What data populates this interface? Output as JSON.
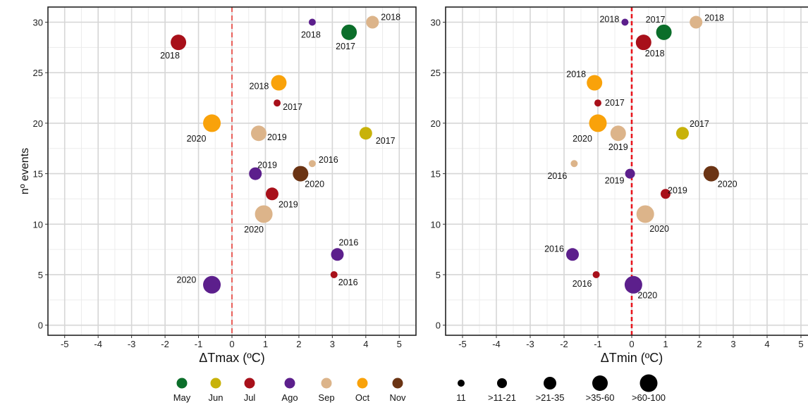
{
  "chart_data": [
    {
      "type": "scatter",
      "title": "",
      "xlabel": "ΔTmax (ºC)",
      "ylabel": "nº events",
      "xlim": [
        -5.5,
        5.5
      ],
      "ylim": [
        -1,
        31.5
      ],
      "x_ticks": [
        -5,
        -4,
        -3,
        -2,
        -1,
        0,
        1,
        2,
        3,
        4,
        5
      ],
      "y_ticks": [
        0,
        5,
        10,
        15,
        20,
        25,
        30
      ],
      "grid": true,
      "reference_line": {
        "x": 0,
        "color": "#e8322c",
        "style": "dashed"
      },
      "points": [
        {
          "x": -1.6,
          "y": 28,
          "month": "Jul",
          "size_class": ">35-60",
          "label": "2018"
        },
        {
          "x": 2.4,
          "y": 30,
          "month": "Ago",
          "size_class": "11",
          "label": "2018"
        },
        {
          "x": 3.5,
          "y": 29,
          "month": "May",
          "size_class": ">35-60",
          "label": "2017"
        },
        {
          "x": 4.2,
          "y": 30,
          "month": "Sep",
          "size_class": ">21-35",
          "label": "2018"
        },
        {
          "x": 1.4,
          "y": 24,
          "month": "Oct",
          "size_class": ">35-60",
          "label": "2018"
        },
        {
          "x": 1.35,
          "y": 22,
          "month": "Jul",
          "size_class": "11",
          "label": "2017"
        },
        {
          "x": -0.6,
          "y": 20,
          "month": "Oct",
          "size_class": ">60-100",
          "label": "2020"
        },
        {
          "x": 0.8,
          "y": 19,
          "month": "Sep",
          "size_class": ">35-60",
          "label": "2019"
        },
        {
          "x": 4.0,
          "y": 19,
          "month": "Jun",
          "size_class": ">21-35",
          "label": "2017"
        },
        {
          "x": 2.4,
          "y": 16,
          "month": "Sep",
          "size_class": "11",
          "label": "2016"
        },
        {
          "x": 0.7,
          "y": 15,
          "month": "Ago",
          "size_class": ">21-35",
          "label": "2019"
        },
        {
          "x": 2.05,
          "y": 15,
          "month": "Nov",
          "size_class": ">35-60",
          "label": "2020"
        },
        {
          "x": 1.2,
          "y": 13,
          "month": "Jul",
          "size_class": ">21-35",
          "label": "2019"
        },
        {
          "x": 0.95,
          "y": 11,
          "month": "Sep",
          "size_class": ">60-100",
          "label": "2020"
        },
        {
          "x": 3.15,
          "y": 7,
          "month": "Ago",
          "size_class": ">21-35",
          "label": "2016"
        },
        {
          "x": 3.05,
          "y": 5,
          "month": "Jul",
          "size_class": "11",
          "label": "2016"
        },
        {
          "x": -0.6,
          "y": 4,
          "month": "Ago",
          "size_class": ">60-100",
          "label": "2020"
        }
      ]
    },
    {
      "type": "scatter",
      "title": "",
      "xlabel": "ΔTmin (ºC)",
      "ylabel": "",
      "xlim": [
        -5.5,
        5.5
      ],
      "ylim": [
        -1,
        31.5
      ],
      "x_ticks": [
        -5,
        -4,
        -3,
        -2,
        -1,
        0,
        1,
        2,
        3,
        4,
        5
      ],
      "y_ticks": [
        0,
        5,
        10,
        15,
        20,
        25,
        30
      ],
      "grid": true,
      "reference_line": {
        "x": 0,
        "color": "#e8141c",
        "style": "dashed"
      },
      "points": [
        {
          "x": -0.2,
          "y": 30,
          "month": "Ago",
          "size_class": "11",
          "label": "2018"
        },
        {
          "x": 0.95,
          "y": 29,
          "month": "May",
          "size_class": ">35-60",
          "label": "2017"
        },
        {
          "x": 1.9,
          "y": 30,
          "month": "Sep",
          "size_class": ">21-35",
          "label": "2018"
        },
        {
          "x": 0.35,
          "y": 28,
          "month": "Jul",
          "size_class": ">35-60",
          "label": "2018"
        },
        {
          "x": -1.1,
          "y": 24,
          "month": "Oct",
          "size_class": ">35-60",
          "label": "2018"
        },
        {
          "x": -1.0,
          "y": 22,
          "month": "Jul",
          "size_class": "11",
          "label": "2017"
        },
        {
          "x": -1.0,
          "y": 20,
          "month": "Oct",
          "size_class": ">60-100",
          "label": "2020"
        },
        {
          "x": -0.4,
          "y": 19,
          "month": "Sep",
          "size_class": ">35-60",
          "label": "2019"
        },
        {
          "x": 1.5,
          "y": 19,
          "month": "Jun",
          "size_class": ">21-35",
          "label": "2017"
        },
        {
          "x": -1.7,
          "y": 16,
          "month": "Sep",
          "size_class": "11",
          "label": "2016"
        },
        {
          "x": -0.05,
          "y": 15,
          "month": "Ago",
          "size_class": ">11-21",
          "label": "2019"
        },
        {
          "x": 2.35,
          "y": 15,
          "month": "Nov",
          "size_class": ">35-60",
          "label": "2020"
        },
        {
          "x": 1.0,
          "y": 13,
          "month": "Jul",
          "size_class": ">11-21",
          "label": "2019"
        },
        {
          "x": 0.4,
          "y": 11,
          "month": "Sep",
          "size_class": ">60-100",
          "label": "2020"
        },
        {
          "x": -1.75,
          "y": 7,
          "month": "Ago",
          "size_class": ">21-35",
          "label": "2016"
        },
        {
          "x": -1.05,
          "y": 5,
          "month": "Jul",
          "size_class": "11",
          "label": "2016"
        },
        {
          "x": 0.05,
          "y": 4,
          "month": "Ago",
          "size_class": ">60-100",
          "label": "2020"
        }
      ]
    }
  ],
  "legend_months": [
    {
      "name": "May",
      "color": "#0b6e2a"
    },
    {
      "name": "Jun",
      "color": "#c8b20a"
    },
    {
      "name": "Jul",
      "color": "#a8101a"
    },
    {
      "name": "Ago",
      "color": "#5c1f8c"
    },
    {
      "name": "Sep",
      "color": "#dcb48a"
    },
    {
      "name": "Oct",
      "color": "#f9a20a"
    },
    {
      "name": "Nov",
      "color": "#6b3414"
    }
  ],
  "legend_sizes": [
    "11",
    ">11-21",
    ">21-35",
    ">35-60",
    ">60-100"
  ]
}
